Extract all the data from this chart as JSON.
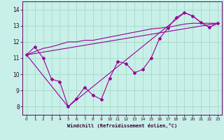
{
  "xlabel": "Windchill (Refroidissement éolien,°C)",
  "background_color": "#c8f0e8",
  "line_color": "#990099",
  "xlim": [
    -0.5,
    23.5
  ],
  "ylim": [
    7.5,
    14.5
  ],
  "xticks": [
    0,
    1,
    2,
    3,
    4,
    5,
    6,
    7,
    8,
    9,
    10,
    11,
    12,
    13,
    14,
    15,
    16,
    17,
    18,
    19,
    20,
    21,
    22,
    23
  ],
  "yticks": [
    8,
    9,
    10,
    11,
    12,
    13,
    14
  ],
  "grid_color": "#aaddcc",
  "zigzag_x": [
    0,
    1,
    2,
    3,
    4,
    5,
    6,
    7,
    8,
    9,
    10,
    11,
    12,
    13,
    14,
    15,
    16,
    17,
    18,
    19,
    20,
    21,
    22,
    23
  ],
  "zigzag_y": [
    11.2,
    11.7,
    11.0,
    9.7,
    9.55,
    8.0,
    8.5,
    9.2,
    8.7,
    8.45,
    9.75,
    10.8,
    10.65,
    10.1,
    10.3,
    11.0,
    12.2,
    12.85,
    13.5,
    13.8,
    13.6,
    13.2,
    12.9,
    13.15
  ],
  "line1_x": [
    0,
    23
  ],
  "line1_y": [
    11.2,
    13.15
  ],
  "line2_x": [
    0,
    1,
    2,
    3,
    4,
    5,
    6,
    7,
    8,
    9,
    10,
    11,
    12,
    13,
    14,
    15,
    16,
    17,
    18,
    19,
    20,
    21,
    22,
    23
  ],
  "line2_y": [
    11.2,
    11.4,
    11.6,
    11.7,
    11.85,
    12.0,
    12.0,
    12.1,
    12.1,
    12.2,
    12.3,
    12.4,
    12.5,
    12.6,
    12.7,
    12.8,
    12.85,
    12.9,
    13.0,
    13.1,
    13.15,
    13.15,
    13.15,
    13.15
  ],
  "line3_x": [
    0,
    5,
    19,
    20,
    21,
    22,
    23
  ],
  "line3_y": [
    11.2,
    8.0,
    13.8,
    13.6,
    13.2,
    12.9,
    13.15
  ]
}
